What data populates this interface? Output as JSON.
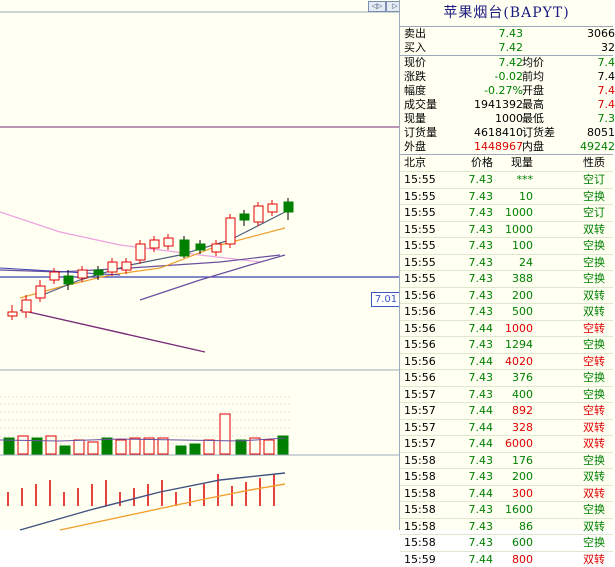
{
  "stock_name": "苹果烟台(BAPYT)",
  "price_tag": "7.01",
  "order_book": {
    "sell": {
      "label": "卖出",
      "price": "7.43",
      "volume": "3066"
    },
    "buy": {
      "label": "买入",
      "price": "7.42",
      "volume": "32"
    }
  },
  "stats": [
    {
      "l1": "现价",
      "v1": "7.42",
      "c1": "green",
      "l2": "均价",
      "v2": "7.4",
      "c2": "green"
    },
    {
      "l1": "涨跌",
      "v1": "-0.02",
      "c1": "green",
      "l2": "前均",
      "v2": "7.4",
      "c2": "blk"
    },
    {
      "l1": "幅度",
      "v1": "-0.27%",
      "c1": "green",
      "l2": "开盘",
      "v2": "7.4",
      "c2": "red"
    },
    {
      "l1": "成交量",
      "v1": "1941392",
      "c1": "blk",
      "l2": "最高",
      "v2": "7.4",
      "c2": "red"
    },
    {
      "l1": "现量",
      "v1": "1000",
      "c1": "blk",
      "l2": "最低",
      "v2": "7.3",
      "c2": "green"
    },
    {
      "l1": "订货量",
      "v1": "4618410",
      "c1": "blk",
      "l2": "订货差",
      "v2": "8051",
      "c2": "blk"
    },
    {
      "l1": "外盘",
      "v1": "1448967",
      "c1": "red",
      "l2": "内盘",
      "v2": "49242",
      "c2": "green"
    }
  ],
  "trade_headers": {
    "time": "北京",
    "price": "价格",
    "volume": "现量",
    "type": "性质"
  },
  "trades": [
    {
      "time": "15:55",
      "price": "7.43",
      "volume": "***",
      "type": "空订",
      "pc": "green",
      "vc": "green",
      "tc": "green"
    },
    {
      "time": "15:55",
      "price": "7.43",
      "volume": "10",
      "type": "空换",
      "pc": "green",
      "vc": "green",
      "tc": "green"
    },
    {
      "time": "15:55",
      "price": "7.43",
      "volume": "1000",
      "type": "空订",
      "pc": "green",
      "vc": "green",
      "tc": "green"
    },
    {
      "time": "15:55",
      "price": "7.43",
      "volume": "1000",
      "type": "双转",
      "pc": "green",
      "vc": "green",
      "tc": "green"
    },
    {
      "time": "15:55",
      "price": "7.43",
      "volume": "100",
      "type": "空换",
      "pc": "green",
      "vc": "green",
      "tc": "green"
    },
    {
      "time": "15:55",
      "price": "7.43",
      "volume": "24",
      "type": "空换",
      "pc": "green",
      "vc": "green",
      "tc": "green"
    },
    {
      "time": "15:55",
      "price": "7.43",
      "volume": "388",
      "type": "空换",
      "pc": "green",
      "vc": "green",
      "tc": "green"
    },
    {
      "time": "15:56",
      "price": "7.43",
      "volume": "200",
      "type": "双转",
      "pc": "green",
      "vc": "green",
      "tc": "green"
    },
    {
      "time": "15:56",
      "price": "7.43",
      "volume": "500",
      "type": "双转",
      "pc": "green",
      "vc": "green",
      "tc": "green"
    },
    {
      "time": "15:56",
      "price": "7.44",
      "volume": "1000",
      "type": "空转",
      "pc": "green",
      "vc": "red",
      "tc": "red"
    },
    {
      "time": "15:56",
      "price": "7.43",
      "volume": "1294",
      "type": "空换",
      "pc": "green",
      "vc": "green",
      "tc": "green"
    },
    {
      "time": "15:56",
      "price": "7.44",
      "volume": "4020",
      "type": "空转",
      "pc": "green",
      "vc": "red",
      "tc": "red"
    },
    {
      "time": "15:56",
      "price": "7.43",
      "volume": "376",
      "type": "空换",
      "pc": "green",
      "vc": "green",
      "tc": "green"
    },
    {
      "time": "15:57",
      "price": "7.43",
      "volume": "400",
      "type": "空换",
      "pc": "green",
      "vc": "green",
      "tc": "green"
    },
    {
      "time": "15:57",
      "price": "7.44",
      "volume": "892",
      "type": "空转",
      "pc": "green",
      "vc": "red",
      "tc": "red"
    },
    {
      "time": "15:57",
      "price": "7.44",
      "volume": "328",
      "type": "双转",
      "pc": "green",
      "vc": "red",
      "tc": "red"
    },
    {
      "time": "15:57",
      "price": "7.44",
      "volume": "6000",
      "type": "双转",
      "pc": "green",
      "vc": "red",
      "tc": "red"
    },
    {
      "time": "15:58",
      "price": "7.43",
      "volume": "176",
      "type": "空换",
      "pc": "green",
      "vc": "green",
      "tc": "green"
    },
    {
      "time": "15:58",
      "price": "7.43",
      "volume": "200",
      "type": "双转",
      "pc": "green",
      "vc": "green",
      "tc": "green"
    },
    {
      "time": "15:58",
      "price": "7.44",
      "volume": "300",
      "type": "双转",
      "pc": "green",
      "vc": "red",
      "tc": "red"
    },
    {
      "time": "15:58",
      "price": "7.43",
      "volume": "1600",
      "type": "空换",
      "pc": "green",
      "vc": "green",
      "tc": "green"
    },
    {
      "time": "15:58",
      "price": "7.43",
      "volume": "86",
      "type": "双转",
      "pc": "green",
      "vc": "green",
      "tc": "green"
    },
    {
      "time": "15:58",
      "price": "7.43",
      "volume": "600",
      "type": "空换",
      "pc": "green",
      "vc": "green",
      "tc": "green"
    },
    {
      "time": "15:59",
      "price": "7.44",
      "volume": "800",
      "type": "双转",
      "pc": "green",
      "vc": "red",
      "tc": "red"
    }
  ]
}
